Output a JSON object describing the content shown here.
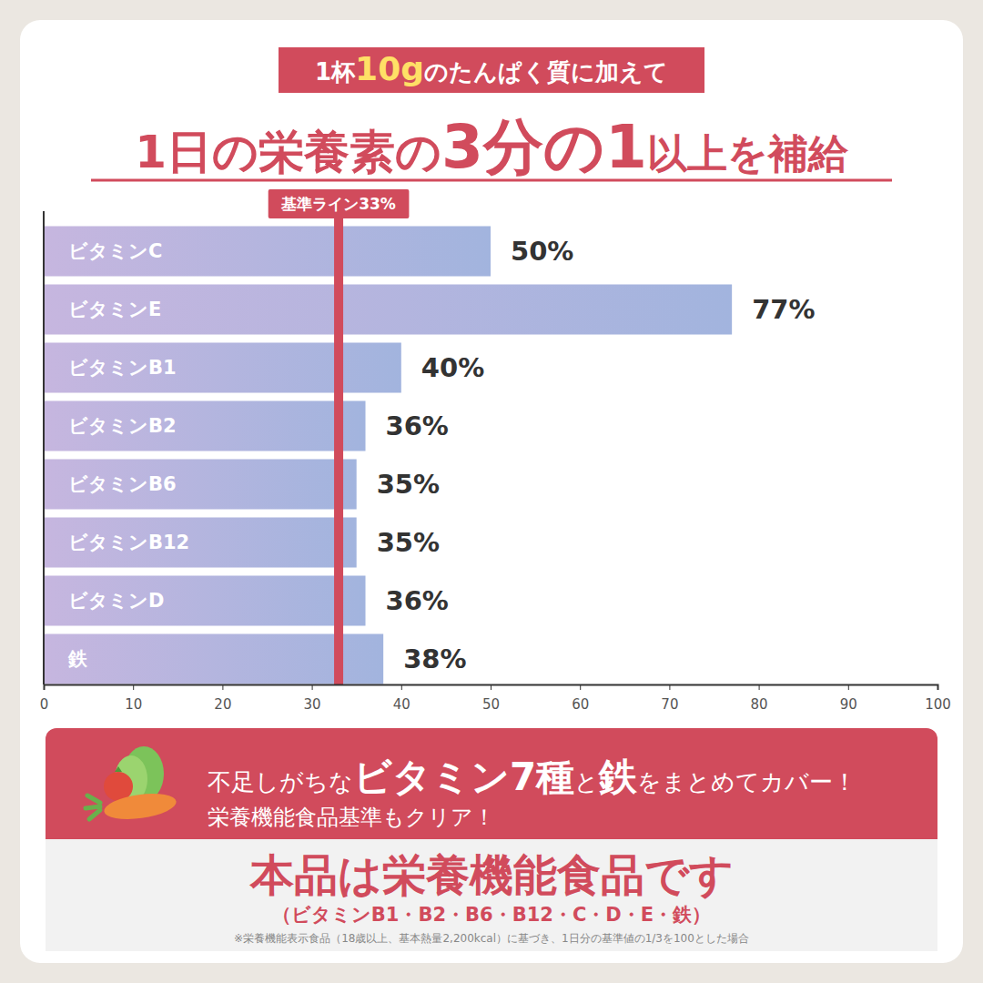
{
  "header": {
    "lead": [
      "1杯",
      "10g",
      "のたんぱく質に加えて"
    ],
    "title": [
      "1日の栄養素の",
      "3分の1",
      "以上を補給"
    ]
  },
  "chart_data": {
    "type": "bar",
    "orientation": "horizontal",
    "categories": [
      "ビタミンC",
      "ビタミンE",
      "ビタミンB1",
      "ビタミンB2",
      "ビタミンB6",
      "ビタミンB12",
      "ビタミンD",
      "鉄"
    ],
    "values": [
      50,
      77,
      40,
      36,
      35,
      35,
      36,
      38
    ],
    "value_labels": [
      "50%",
      "77%",
      "40%",
      "36%",
      "35%",
      "35%",
      "36%",
      "38%"
    ],
    "data_labels": true,
    "color": "#a2b4de",
    "grid": false,
    "xlim": [
      0,
      100
    ],
    "xticks": [
      0,
      10,
      20,
      30,
      40,
      50,
      60,
      70,
      80,
      90,
      100
    ],
    "annotations": [
      {
        "value": 33,
        "label": "基準ライン33%"
      }
    ]
  },
  "footer": {
    "banner": [
      "不足しがちな",
      "ビタミン7種",
      "と",
      "鉄",
      "をまとめてカバー！"
    ],
    "banner_sub": "栄養機能食品基準もクリア！",
    "statement": "本品は栄養機能食品です",
    "nutrients": "（ビタミンB1・B2・B6・B12・C・D・E・鉄）",
    "note": "※栄養機能表示食品（18歳以上、基本熱量2,200kcal）に基づき、1日分の基準値の1/3を100とした場合"
  }
}
